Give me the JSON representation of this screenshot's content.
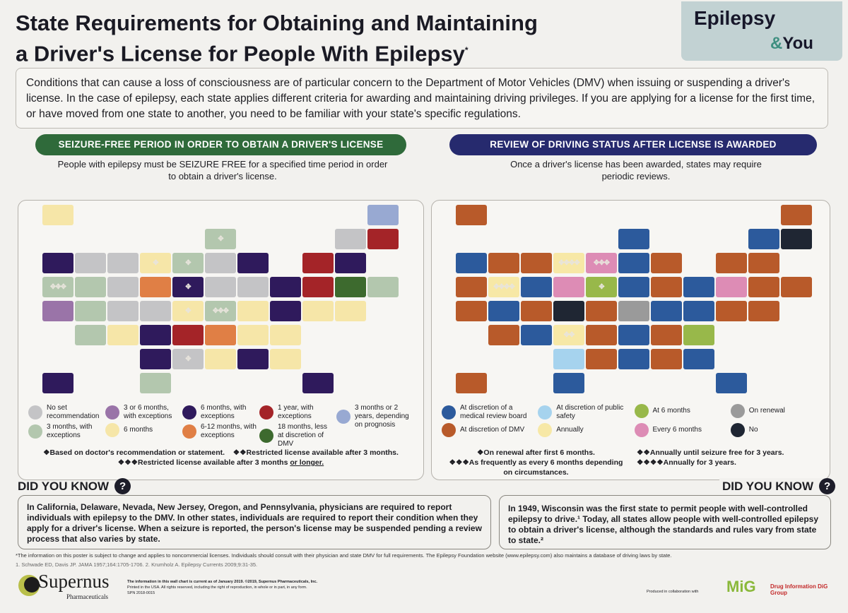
{
  "header": {
    "title_line1": "State Requirements for Obtaining and Maintaining",
    "title_line2": "a Driver's License for People With Epilepsy",
    "title_mark": "*",
    "brand_a": "Epilepsy",
    "brand_amp": "&",
    "brand_b": "You"
  },
  "intro": "Conditions that can cause a loss of consciousness are of particular concern to the Department of Motor Vehicles (DMV) when issuing or suspending a driver's license. In the case of epilepsy, each state applies different criteria for awarding and maintaining driving privileges. If you are applying for a license for the first time, or have moved from one state to another, you need to be familiar with your state's specific regulations.",
  "left": {
    "heading": "SEIZURE-FREE PERIOD IN ORDER TO OBTAIN A DRIVER'S LICENSE",
    "subtitle": "People with epilepsy must be SEIZURE FREE for a specified time period in order to obtain a driver's license.",
    "color": "#2f6a3a",
    "legend": [
      {
        "label": "No set recommendation",
        "color": "#c4c4c6"
      },
      {
        "label": "3 or 6 months, with exceptions",
        "color": "#9a74a8"
      },
      {
        "label": "6 months, with exceptions",
        "color": "#2f1a5c"
      },
      {
        "label": "1 year, with exceptions",
        "color": "#a42428"
      },
      {
        "label": "3 months or 2 years, depending on prognosis",
        "color": "#98a9d2"
      },
      {
        "label": "3 months, with exceptions",
        "color": "#b3c7ae"
      },
      {
        "label": "6 months",
        "color": "#f6e6a8"
      },
      {
        "label": "6-12 months, with exceptions",
        "color": "#e07f45"
      },
      {
        "label": "18 months, less at discretion of DMV",
        "color": "#3d6a2e"
      }
    ],
    "notes": {
      "n1": "❖Based on doctor's recommendation or statement.",
      "n2": "❖❖Restricted license available after 3 months.",
      "n3": "❖❖❖Restricted license available after 3 months ",
      "n3u": "or longer."
    },
    "states": {
      "AK": [
        6,
        0
      ],
      "ME": [
        4,
        0
      ],
      "WI": [
        5,
        1
      ],
      "VT": [
        0,
        0
      ],
      "NH": [
        3,
        0
      ],
      "WA": [
        2,
        0
      ],
      "ID": [
        0,
        0
      ],
      "MT": [
        0,
        0
      ],
      "ND": [
        6,
        1
      ],
      "MN": [
        5,
        1
      ],
      "IL": [
        0,
        0
      ],
      "MI": [
        2,
        0
      ],
      "NY": [
        3,
        0
      ],
      "MA": [
        2,
        0
      ],
      "OR": [
        5,
        3
      ],
      "NV": [
        5,
        0
      ],
      "WY": [
        0,
        0
      ],
      "SD": [
        7,
        0
      ],
      "IA": [
        2,
        1
      ],
      "IN": [
        0,
        0
      ],
      "OH": [
        0,
        0
      ],
      "PA": [
        2,
        0
      ],
      "NJ": [
        3,
        0
      ],
      "CT": [
        8,
        0
      ],
      "RI": [
        5,
        0
      ],
      "CA": [
        1,
        0
      ],
      "UT": [
        5,
        0
      ],
      "CO": [
        0,
        0
      ],
      "NE": [
        0,
        0
      ],
      "MO": [
        6,
        1
      ],
      "KY": [
        5,
        3
      ],
      "WV": [
        6,
        0
      ],
      "VA": [
        2,
        0
      ],
      "MD": [
        6,
        0
      ],
      "DE": [
        6,
        0
      ],
      "AZ": [
        5,
        0
      ],
      "NM": [
        6,
        0
      ],
      "KS": [
        2,
        0
      ],
      "AR": [
        3,
        0
      ],
      "TN": [
        7,
        0
      ],
      "NC": [
        6,
        0
      ],
      "SC": [
        6,
        0
      ],
      "OK": [
        2,
        0
      ],
      "LA": [
        0,
        1
      ],
      "MS": [
        6,
        0
      ],
      "AL": [
        2,
        0
      ],
      "GA": [
        6,
        0
      ],
      "HI": [
        2,
        0
      ],
      "TX": [
        5,
        0
      ],
      "FL": [
        2,
        0
      ]
    }
  },
  "right": {
    "heading": "REVIEW OF DRIVING STATUS AFTER LICENSE IS AWARDED",
    "subtitle": "Once a driver's license has been awarded, states may require periodic reviews.",
    "color": "#262a6e",
    "legend": [
      {
        "label": "At discretion of a medical review board",
        "color": "#2c5a9c"
      },
      {
        "label": "At discretion of public safety",
        "color": "#a6d3ee"
      },
      {
        "label": "At 6 months",
        "color": "#98b84a"
      },
      {
        "label": "On renewal",
        "color": "#9a9a9a"
      },
      {
        "label": "At discretion of DMV",
        "color": "#b85a2a"
      },
      {
        "label": "Annually",
        "color": "#f7e8a6"
      },
      {
        "label": "Every 6 months",
        "color": "#dd8cb5"
      },
      {
        "label": "No",
        "color": "#1f2633"
      }
    ],
    "notes": {
      "n1": "❖On renewal after first 6 months.",
      "n2": "❖❖Annually until seizure free for 3 years.",
      "n3": "❖❖❖As frequently as every 6 months depending on circumstances.",
      "n4": "❖❖❖❖Annually for 3 years."
    },
    "states": {
      "AK": [
        4,
        0
      ],
      "ME": [
        4,
        0
      ],
      "WI": [
        0,
        0
      ],
      "VT": [
        0,
        0
      ],
      "NH": [
        7,
        0
      ],
      "WA": [
        0,
        0
      ],
      "ID": [
        4,
        0
      ],
      "MT": [
        4,
        0
      ],
      "ND": [
        5,
        4
      ],
      "MN": [
        6,
        3
      ],
      "IL": [
        0,
        0
      ],
      "MI": [
        4,
        0
      ],
      "NY": [
        4,
        0
      ],
      "MA": [
        4,
        0
      ],
      "OR": [
        4,
        0
      ],
      "NV": [
        5,
        4
      ],
      "WY": [
        0,
        0
      ],
      "SD": [
        6,
        0
      ],
      "IA": [
        2,
        1
      ],
      "IN": [
        0,
        0
      ],
      "OH": [
        4,
        0
      ],
      "PA": [
        0,
        0
      ],
      "NJ": [
        6,
        0
      ],
      "CT": [
        4,
        0
      ],
      "RI": [
        4,
        0
      ],
      "CA": [
        4,
        0
      ],
      "UT": [
        0,
        0
      ],
      "CO": [
        4,
        0
      ],
      "NE": [
        7,
        0
      ],
      "MO": [
        4,
        0
      ],
      "KY": [
        3,
        0
      ],
      "WV": [
        0,
        0
      ],
      "VA": [
        0,
        0
      ],
      "MD": [
        4,
        0
      ],
      "DE": [
        4,
        0
      ],
      "AZ": [
        4,
        0
      ],
      "NM": [
        0,
        0
      ],
      "KS": [
        5,
        2
      ],
      "AR": [
        4,
        0
      ],
      "TN": [
        0,
        0
      ],
      "NC": [
        4,
        0
      ],
      "SC": [
        2,
        0
      ],
      "OK": [
        1,
        0
      ],
      "LA": [
        4,
        0
      ],
      "MS": [
        0,
        0
      ],
      "AL": [
        4,
        0
      ],
      "GA": [
        0,
        0
      ],
      "HI": [
        4,
        0
      ],
      "TX": [
        0,
        0
      ],
      "FL": [
        0,
        0
      ]
    }
  },
  "did_you_know": {
    "label": "DID YOU KNOW",
    "q": "?",
    "left": "In California, Delaware, Nevada, New Jersey, Oregon, and Pennsylvania, physicians are required to report individuals with epilepsy to the DMV. In other states, individuals are required to report their condition when they apply for a driver's license. When a seizure is reported, the person's license may be suspended pending a review process that also varies by state.",
    "right": "In 1949, Wisconsin was the first state to permit people with well-controlled epilepsy to drive.¹ Today, all states allow people with well-controlled epilepsy to obtain a driver's license, although the standards and rules vary from state to state.²"
  },
  "footer": {
    "disclaimer": "*The information on this poster is subject to change and applies to noncommercial licenses. Individuals should consult with their physician and state DMV for full requirements. The Epilepsy Foundation website (www.epilepsy.com) also maintains a database of driving laws by state.",
    "refs": "1. Schwade ED, Davis JP. JAMA 1957;164:1705-1706. 2. Krumholz A. Epilepsy Currents 2009;9:31-35.",
    "company": "Supernus",
    "company_sub": "Pharmaceuticals",
    "line1": "The information in this wall chart is current as of January 2019. ©2019, Supernus Pharmaceuticals, Inc.",
    "line2": "Printed in the USA. All rights reserved, including the right of reproduction, in whole or in part, in any form.",
    "line3": "SPN 2018-0015",
    "collab": "Produced in collaboration with",
    "mig": "MiG",
    "dig": "Drug Information DiG Group"
  }
}
